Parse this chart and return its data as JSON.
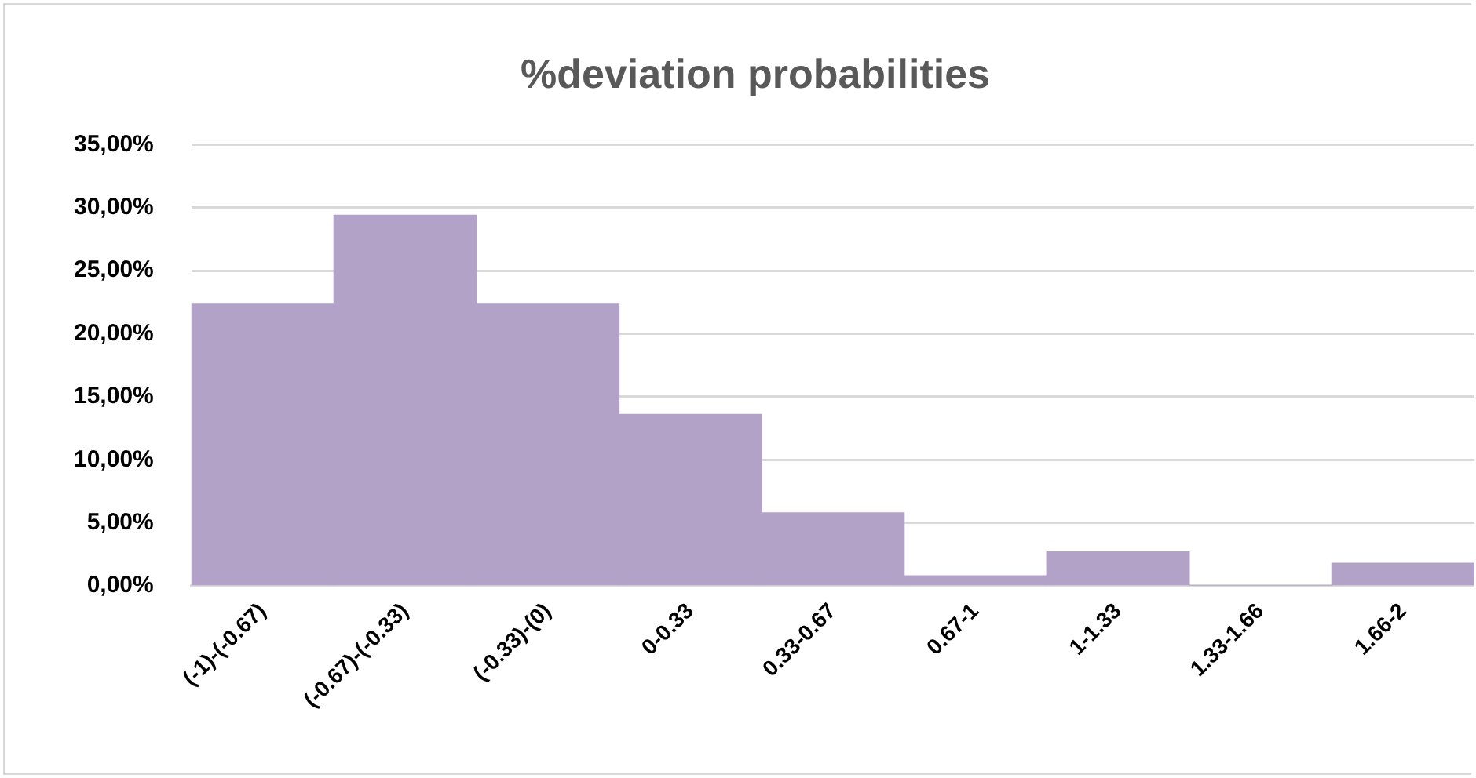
{
  "chart_data": {
    "type": "bar",
    "title": "%deviation probabilities",
    "categories": [
      "(-1)-(-0.67)",
      "(-0.67)-(-0.33)",
      "(-0.33)-(0)",
      "0-0.33",
      "0.33-0.67",
      "0.67-1",
      "1-1.33",
      "1.33-1.66",
      "1.66-2"
    ],
    "values": [
      22.4,
      29.4,
      22.4,
      13.6,
      5.8,
      0.8,
      2.7,
      0,
      1.8
    ],
    "color": "#b3a2c7",
    "ylim": [
      0,
      35
    ],
    "yticks": [
      {
        "value": 0,
        "label": "0,00%"
      },
      {
        "value": 5,
        "label": "5,00%"
      },
      {
        "value": 10,
        "label": "10,00%"
      },
      {
        "value": 15,
        "label": "15,00%"
      },
      {
        "value": 20,
        "label": "20,00%"
      },
      {
        "value": 25,
        "label": "25,00%"
      },
      {
        "value": 30,
        "label": "30,00%"
      },
      {
        "value": 35,
        "label": "35,00%"
      }
    ],
    "grid": "y",
    "legend": false
  }
}
